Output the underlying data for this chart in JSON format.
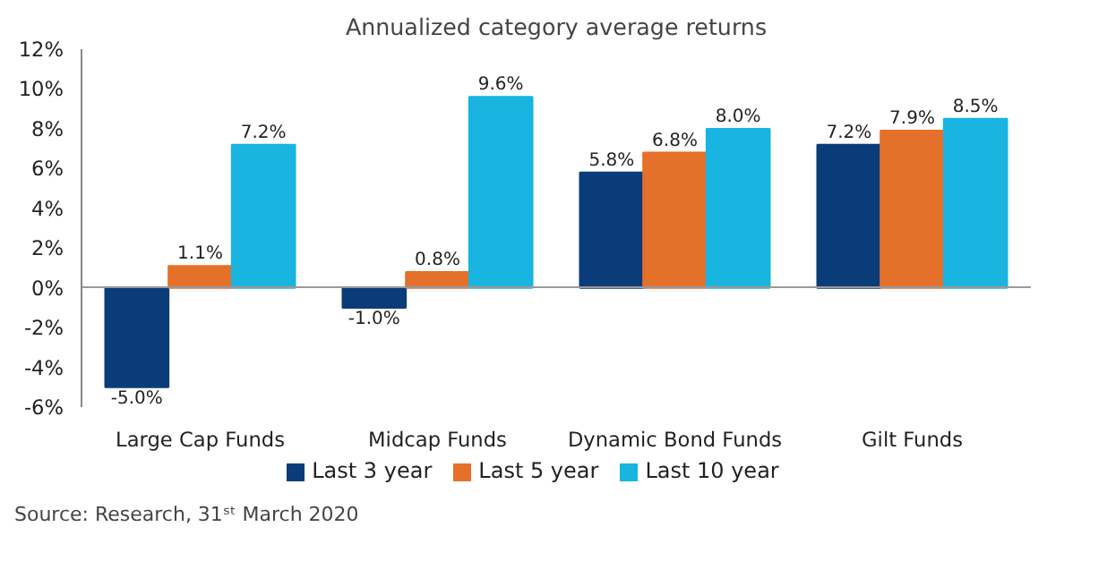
{
  "chart_data": {
    "type": "bar",
    "title": "Annualized category average returns",
    "categories": [
      "Large Cap Funds",
      "Midcap Funds",
      "Dynamic Bond Funds",
      "Gilt Funds"
    ],
    "series": [
      {
        "name": "Last 3 year",
        "color": "#0b3c7a",
        "values": [
          -5.0,
          -1.0,
          5.8,
          7.2
        ],
        "value_labels": [
          "-5.0%",
          "-1.0%",
          "5.8%",
          "7.2%"
        ]
      },
      {
        "name": "Last 5 year",
        "color": "#e5702a",
        "values": [
          1.1,
          0.8,
          6.8,
          7.9
        ],
        "value_labels": [
          "1.1%",
          "0.8%",
          "6.8%",
          "7.9%"
        ]
      },
      {
        "name": "Last 10 year",
        "color": "#19b4df",
        "values": [
          7.2,
          9.6,
          8.0,
          8.5
        ],
        "value_labels": [
          "7.2%",
          "9.6%",
          "8.0%",
          "8.5%"
        ]
      }
    ],
    "ylim": [
      -6,
      12
    ],
    "yticks": [
      {
        "value": -6,
        "label": "-6%"
      },
      {
        "value": -4,
        "label": "-4%"
      },
      {
        "value": -2,
        "label": "-2%"
      },
      {
        "value": 0,
        "label": "0%"
      },
      {
        "value": 2,
        "label": "2%"
      },
      {
        "value": 4,
        "label": "4%"
      },
      {
        "value": 6,
        "label": "6%"
      },
      {
        "value": 8,
        "label": "8%"
      },
      {
        "value": 10,
        "label": "10%"
      },
      {
        "value": 12,
        "label": "12%"
      }
    ],
    "legend": "bottom",
    "annotations": [
      "Source: Research, 31ˢᵗ March 2020"
    ]
  }
}
